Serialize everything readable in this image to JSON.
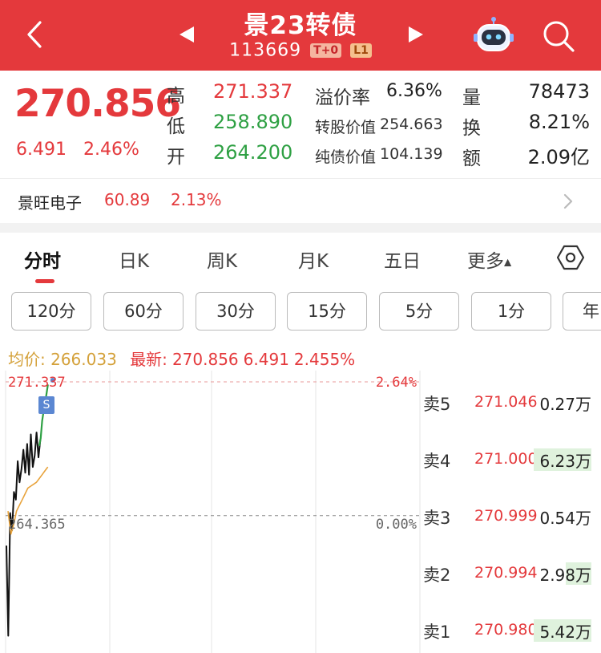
{
  "header": {
    "title": "景23转债",
    "code": "113669",
    "tags": [
      "T+0",
      "L1"
    ],
    "bg_color": "#e4393c"
  },
  "quote": {
    "price": "270.856",
    "change": "6.491",
    "change_pct": "2.46%",
    "high_label": "高",
    "high": "271.337",
    "low_label": "低",
    "low": "258.890",
    "open_label": "开",
    "open": "264.200",
    "premium_label": "溢价率",
    "premium": "6.36%",
    "conv_value_label": "转股价值",
    "conv_value": "254.663",
    "bond_value_label": "纯债价值",
    "bond_value": "104.139",
    "volume_label": "量",
    "volume": "78473",
    "turnover_label": "换",
    "turnover": "8.21%",
    "amount_label": "额",
    "amount": "2.09亿"
  },
  "underlying": {
    "name": "景旺电子",
    "price": "60.89",
    "change_pct": "2.13%"
  },
  "tabs": [
    "分时",
    "日K",
    "周K",
    "月K",
    "五日",
    "更多"
  ],
  "periods": [
    "120分",
    "60分",
    "30分",
    "15分",
    "5分",
    "1分",
    "年"
  ],
  "info_line": {
    "avg_label": "均价:",
    "avg": "266.033",
    "latest_label": "最新:",
    "latest": "270.856",
    "latest_change": "6.491",
    "latest_pct": "2.455%"
  },
  "chart_data": {
    "type": "line",
    "y_top_label": "271.337",
    "y_top_pct": "2.64%",
    "y_base_label": "264.365",
    "y_base_pct": "0.00%",
    "ylim": [
      257.37,
      271.337
    ],
    "base": 264.365,
    "series": [
      {
        "color": "#111111",
        "values": [
          262.8,
          258.1,
          264.5,
          263.6,
          265.6,
          265.2,
          267.2,
          266.1,
          266.8,
          267.8,
          266.6,
          268.1,
          266.5,
          268.6,
          266.9,
          267.5,
          268.7,
          267.4,
          268.3
        ]
      },
      {
        "color": "#2ea043",
        "values": [
          268.0,
          268.4,
          269.3,
          269.8,
          270.2,
          270.7,
          271.2
        ]
      },
      {
        "color": "#e8a33c",
        "values": [
          264.6,
          263.4,
          263.9,
          264.6,
          264.9,
          265.2,
          265.5,
          265.8,
          265.9,
          266.0,
          266.1,
          266.3,
          266.5,
          266.7,
          266.9
        ]
      }
    ],
    "signal": "S"
  },
  "orderbook": [
    {
      "label": "卖5",
      "price": "271.046",
      "volume": "0.27万",
      "volume_level": 0
    },
    {
      "label": "卖4",
      "price": "271.000",
      "volume": "6.23万",
      "volume_level": 1.0
    },
    {
      "label": "卖3",
      "price": "270.999",
      "volume": "0.54万",
      "volume_level": 0
    },
    {
      "label": "卖2",
      "price": "270.994",
      "volume": "2.98万",
      "volume_level": 0.45
    },
    {
      "label": "卖1",
      "price": "270.980",
      "volume": "5.42万",
      "volume_level": 1.0
    }
  ]
}
